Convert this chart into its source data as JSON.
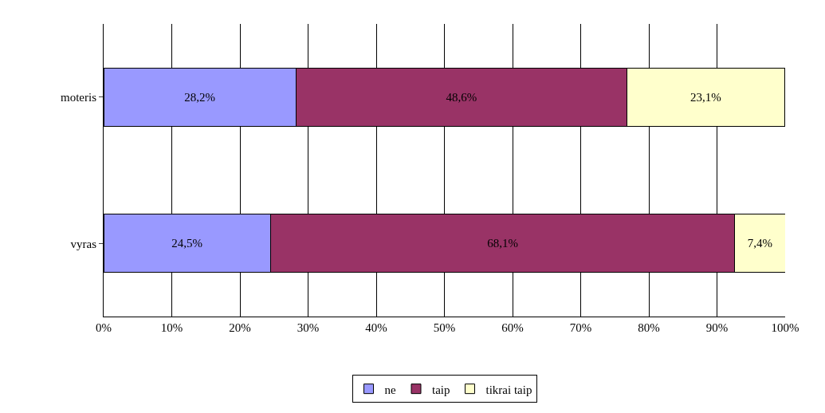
{
  "chart_data": {
    "type": "bar",
    "orientation": "horizontal",
    "stacked": true,
    "categories": [
      "moteris",
      "vyras"
    ],
    "series": [
      {
        "name": "ne",
        "color": "#9999ff",
        "values": [
          28.2,
          24.5
        ],
        "value_labels": [
          "28,2%",
          "24,5%"
        ]
      },
      {
        "name": "taip",
        "color": "#993366",
        "values": [
          48.6,
          68.1
        ],
        "value_labels": [
          "48,6%",
          "68,1%"
        ]
      },
      {
        "name": "tikrai taip",
        "color": "#ffffcc",
        "values": [
          23.1,
          7.4
        ],
        "value_labels": [
          "23,1%",
          "7,4%"
        ]
      }
    ],
    "xlim": [
      0,
      100
    ],
    "xticks": [
      {
        "value": 0,
        "label": "0%"
      },
      {
        "value": 10,
        "label": "10%"
      },
      {
        "value": 20,
        "label": "20%"
      },
      {
        "value": 30,
        "label": "30%"
      },
      {
        "value": 40,
        "label": "40%"
      },
      {
        "value": 50,
        "label": "50%"
      },
      {
        "value": 60,
        "label": "60%"
      },
      {
        "value": 70,
        "label": "70%"
      },
      {
        "value": 80,
        "label": "80%"
      },
      {
        "value": 90,
        "label": "90%"
      },
      {
        "value": 100,
        "label": "100%"
      }
    ],
    "grid": "x",
    "legend": "bottom"
  }
}
